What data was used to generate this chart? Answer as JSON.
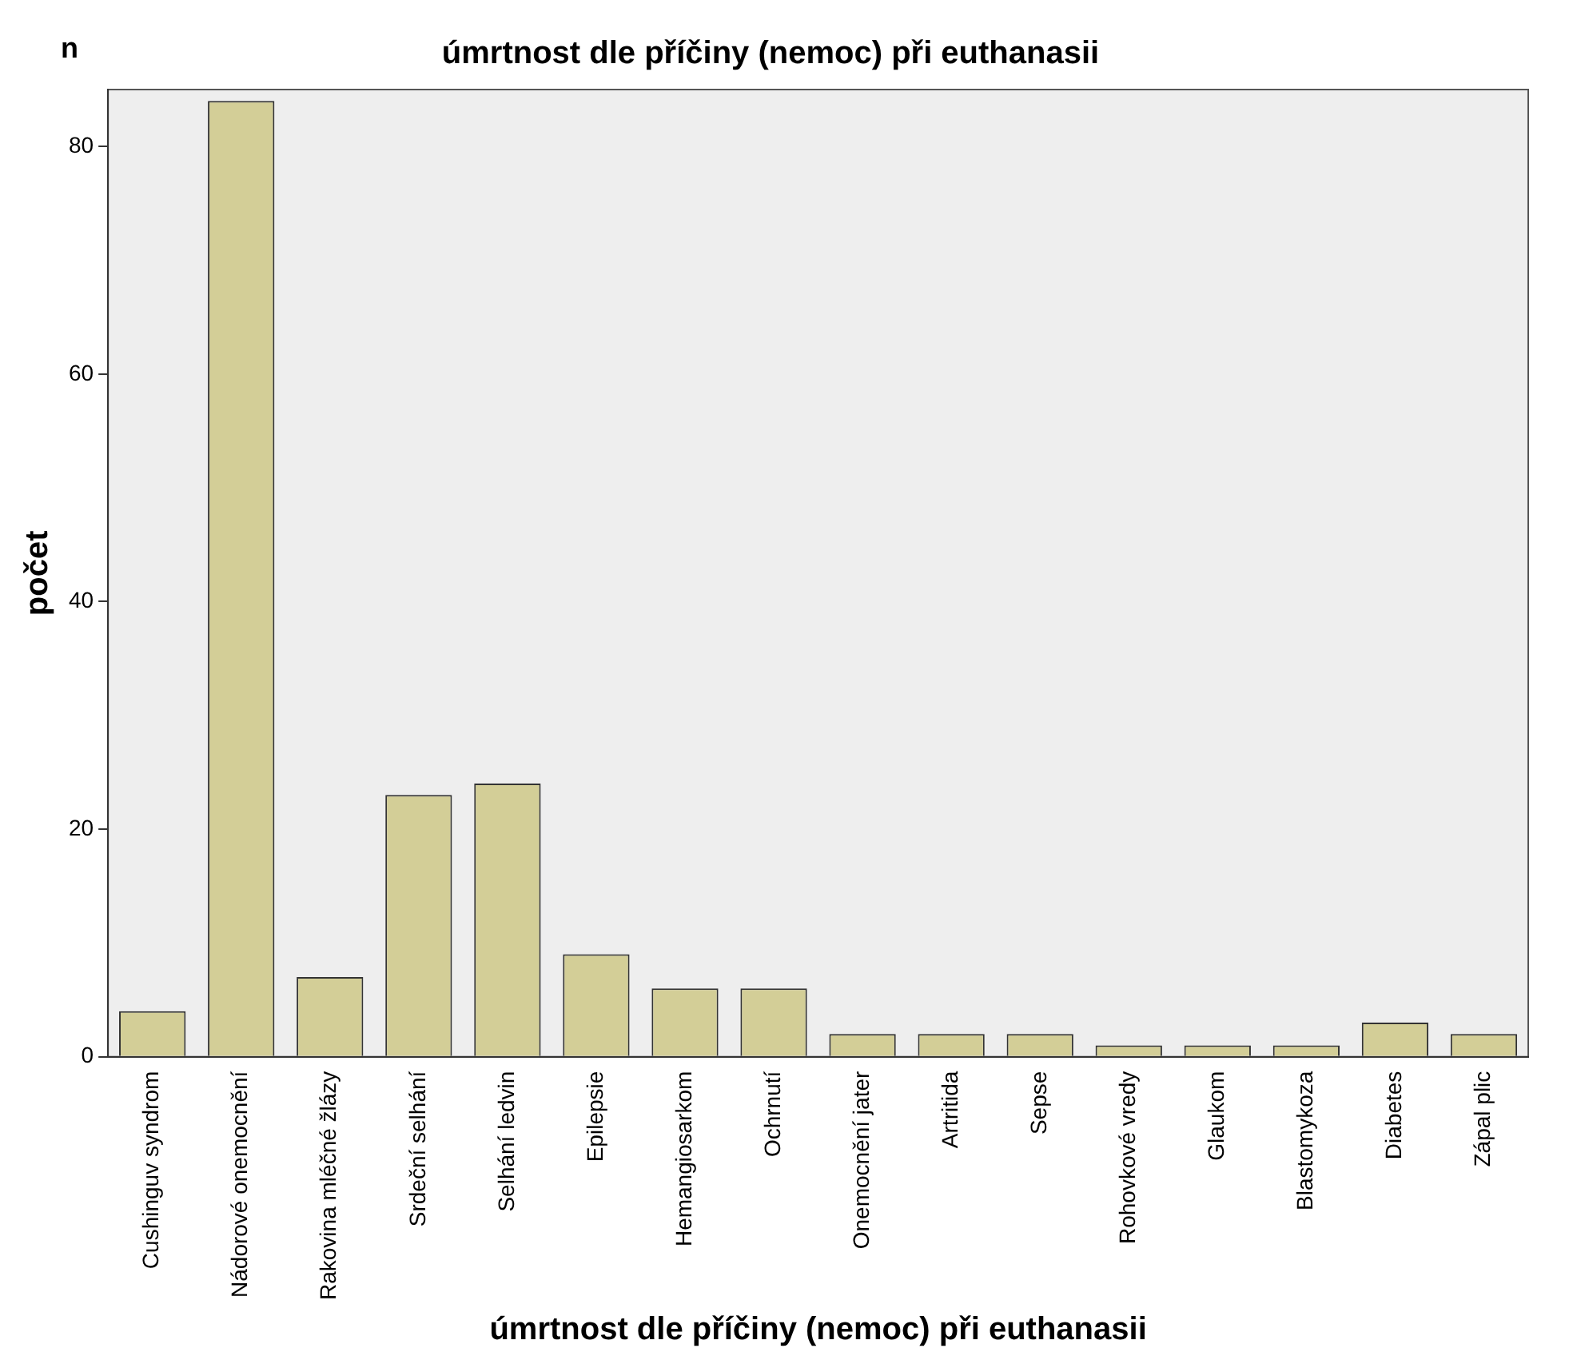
{
  "chart_data": {
    "type": "bar",
    "title": "úmrtnost dle příčiny (nemoc) při euthanasii",
    "xlabel": "úmrtnost dle příčiny (nemoc) při euthanasii",
    "ylabel": "počet",
    "annotations": [
      "n"
    ],
    "categories": [
      "Cushinguv syndrom",
      "Nádorové onemocnění",
      "Rakovina mléčné žlázy",
      "Srdeční selhání",
      "Selhání ledvin",
      "Epilepsie",
      "Hemangiosarkom",
      "Ochrnutí",
      "Onemocnění jater",
      "Artritida",
      "Sepse",
      "Rohovkové vredy",
      "Glaukom",
      "Blastomykoza",
      "Diabetes",
      "Zápal plic"
    ],
    "values": [
      4,
      84,
      7,
      23,
      24,
      9,
      6,
      6,
      2,
      2,
      2,
      1,
      1,
      1,
      3,
      2
    ],
    "color": "#d3ce97",
    "ylim": [
      0,
      85
    ],
    "yticks": [
      0,
      20,
      40,
      60,
      80
    ],
    "grid": false,
    "legend": false
  }
}
